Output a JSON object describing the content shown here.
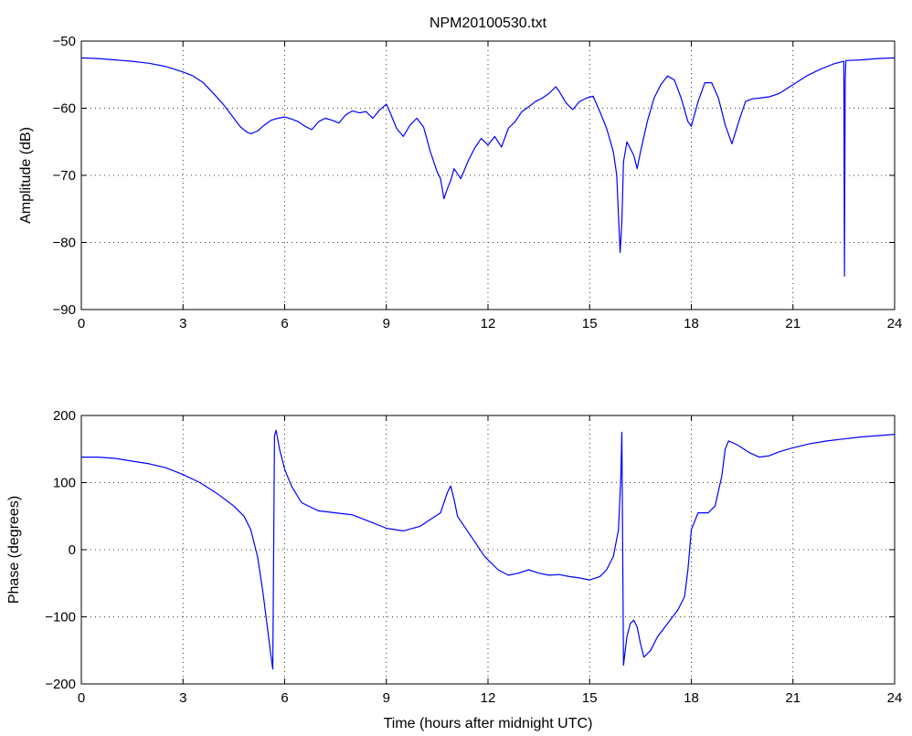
{
  "chart_data": [
    {
      "type": "line",
      "title": "NPM20100530.txt",
      "xlabel": "",
      "ylabel": "Amplitude (dB)",
      "xlim": [
        0,
        24
      ],
      "ylim": [
        -90,
        -50
      ],
      "xticks": [
        0,
        3,
        6,
        9,
        12,
        15,
        18,
        21,
        24
      ],
      "yticks": [
        -90,
        -80,
        -70,
        -60,
        -50
      ],
      "grid": true,
      "line_color": "#0000ff",
      "series": [
        {
          "x": [
            0,
            0.5,
            1,
            1.5,
            2,
            2.5,
            3,
            3.3,
            3.6,
            3.9,
            4.2,
            4.5,
            4.7,
            4.9,
            5.0,
            5.2,
            5.4,
            5.6,
            5.8,
            6.0,
            6.2,
            6.4,
            6.6,
            6.8,
            7.0,
            7.2,
            7.4,
            7.6,
            7.8,
            8.0,
            8.2,
            8.4,
            8.6,
            8.8,
            9.0,
            9.1,
            9.3,
            9.5,
            9.7,
            9.9,
            10.1,
            10.3,
            10.5,
            10.6,
            10.7,
            10.8,
            10.9,
            11.0,
            11.2,
            11.4,
            11.6,
            11.8,
            12.0,
            12.2,
            12.4,
            12.6,
            12.8,
            13.0,
            13.2,
            13.4,
            13.6,
            13.8,
            14.0,
            14.1,
            14.3,
            14.5,
            14.7,
            14.9,
            15.1,
            15.3,
            15.5,
            15.7,
            15.8,
            15.85,
            15.9,
            15.95,
            16.0,
            16.1,
            16.3,
            16.4,
            16.5,
            16.7,
            16.9,
            17.1,
            17.3,
            17.5,
            17.7,
            17.9,
            18.0,
            18.2,
            18.4,
            18.6,
            18.8,
            19.0,
            19.2,
            19.4,
            19.6,
            19.8,
            20.0,
            20.3,
            20.6,
            21.0,
            21.4,
            21.8,
            22.2,
            22.5,
            22.52,
            22.54,
            22.56,
            23.0,
            23.5,
            24.0
          ],
          "values": [
            -52.5,
            -52.6,
            -52.8,
            -53.0,
            -53.3,
            -53.8,
            -54.6,
            -55.2,
            -56.2,
            -57.8,
            -59.5,
            -61.5,
            -62.8,
            -63.6,
            -63.8,
            -63.4,
            -62.5,
            -61.8,
            -61.5,
            -61.3,
            -61.6,
            -62.0,
            -62.7,
            -63.2,
            -62.0,
            -61.5,
            -61.8,
            -62.2,
            -61.0,
            -60.4,
            -60.7,
            -60.5,
            -61.5,
            -60.3,
            -59.4,
            -60.5,
            -63.0,
            -64.2,
            -62.5,
            -61.5,
            -62.8,
            -66.5,
            -69.5,
            -70.5,
            -73.5,
            -72.0,
            -70.8,
            -69.0,
            -70.5,
            -68.0,
            -66.0,
            -64.5,
            -65.5,
            -64.2,
            -65.8,
            -63.0,
            -62.0,
            -60.5,
            -59.8,
            -59.0,
            -58.5,
            -57.8,
            -56.8,
            -57.5,
            -59.2,
            -60.2,
            -59.0,
            -58.5,
            -58.2,
            -60.5,
            -63.0,
            -66.5,
            -70.0,
            -76.0,
            -81.5,
            -77.0,
            -68.0,
            -65.0,
            -67.0,
            -69.0,
            -66.5,
            -62.0,
            -58.5,
            -56.5,
            -55.2,
            -55.8,
            -58.5,
            -62.0,
            -62.7,
            -59.0,
            -56.2,
            -56.2,
            -58.5,
            -62.5,
            -65.3,
            -62.0,
            -59.0,
            -58.6,
            -58.5,
            -58.3,
            -57.8,
            -56.5,
            -55.2,
            -54.2,
            -53.4,
            -53.0,
            -85.0,
            -56.0,
            -52.9,
            -52.8,
            -52.6,
            -52.5
          ]
        }
      ]
    },
    {
      "type": "line",
      "title": "",
      "xlabel": "Time (hours after midnight UTC)",
      "ylabel": "Phase (degrees)",
      "xlim": [
        0,
        24
      ],
      "ylim": [
        -200,
        200
      ],
      "xticks": [
        0,
        3,
        6,
        9,
        12,
        15,
        18,
        21,
        24
      ],
      "yticks": [
        -200,
        -100,
        0,
        100,
        200
      ],
      "grid": true,
      "line_color": "#0000ff",
      "series": [
        {
          "x": [
            0,
            0.5,
            1,
            1.5,
            2,
            2.5,
            3,
            3.5,
            4,
            4.5,
            4.8,
            5.0,
            5.2,
            5.35,
            5.5,
            5.6,
            5.65,
            5.7,
            5.75,
            5.85,
            6.0,
            6.2,
            6.5,
            7.0,
            7.5,
            8.0,
            8.5,
            9.0,
            9.5,
            10.0,
            10.3,
            10.6,
            10.8,
            10.9,
            11.0,
            11.1,
            11.3,
            11.5,
            11.7,
            11.9,
            12.1,
            12.3,
            12.6,
            12.9,
            13.2,
            13.5,
            13.8,
            14.1,
            14.4,
            14.7,
            15.0,
            15.3,
            15.5,
            15.7,
            15.85,
            15.92,
            15.95,
            16.0,
            16.05,
            16.1,
            16.2,
            16.3,
            16.4,
            16.5,
            16.6,
            16.8,
            17.0,
            17.3,
            17.6,
            17.8,
            17.9,
            18.0,
            18.2,
            18.5,
            18.7,
            18.9,
            19.0,
            19.1,
            19.2,
            19.4,
            19.7,
            20.0,
            20.3,
            20.6,
            21.0,
            21.5,
            22.0,
            22.5,
            23.0,
            23.5,
            24.0
          ],
          "values": [
            138,
            138,
            136,
            132,
            128,
            122,
            112,
            100,
            84,
            65,
            50,
            30,
            -10,
            -60,
            -120,
            -160,
            -178,
            170,
            178,
            150,
            120,
            95,
            70,
            58,
            55,
            52,
            42,
            32,
            28,
            35,
            45,
            55,
            85,
            95,
            75,
            50,
            35,
            20,
            5,
            -10,
            -20,
            -30,
            -38,
            -35,
            -30,
            -35,
            -38,
            -37,
            -40,
            -42,
            -45,
            -40,
            -30,
            -10,
            30,
            110,
            175,
            -172,
            -150,
            -130,
            -110,
            -105,
            -115,
            -140,
            -160,
            -150,
            -130,
            -110,
            -90,
            -70,
            -30,
            30,
            55,
            55,
            65,
            110,
            150,
            162,
            160,
            155,
            145,
            138,
            140,
            146,
            152,
            158,
            162,
            165,
            168,
            170,
            172
          ]
        }
      ]
    }
  ]
}
